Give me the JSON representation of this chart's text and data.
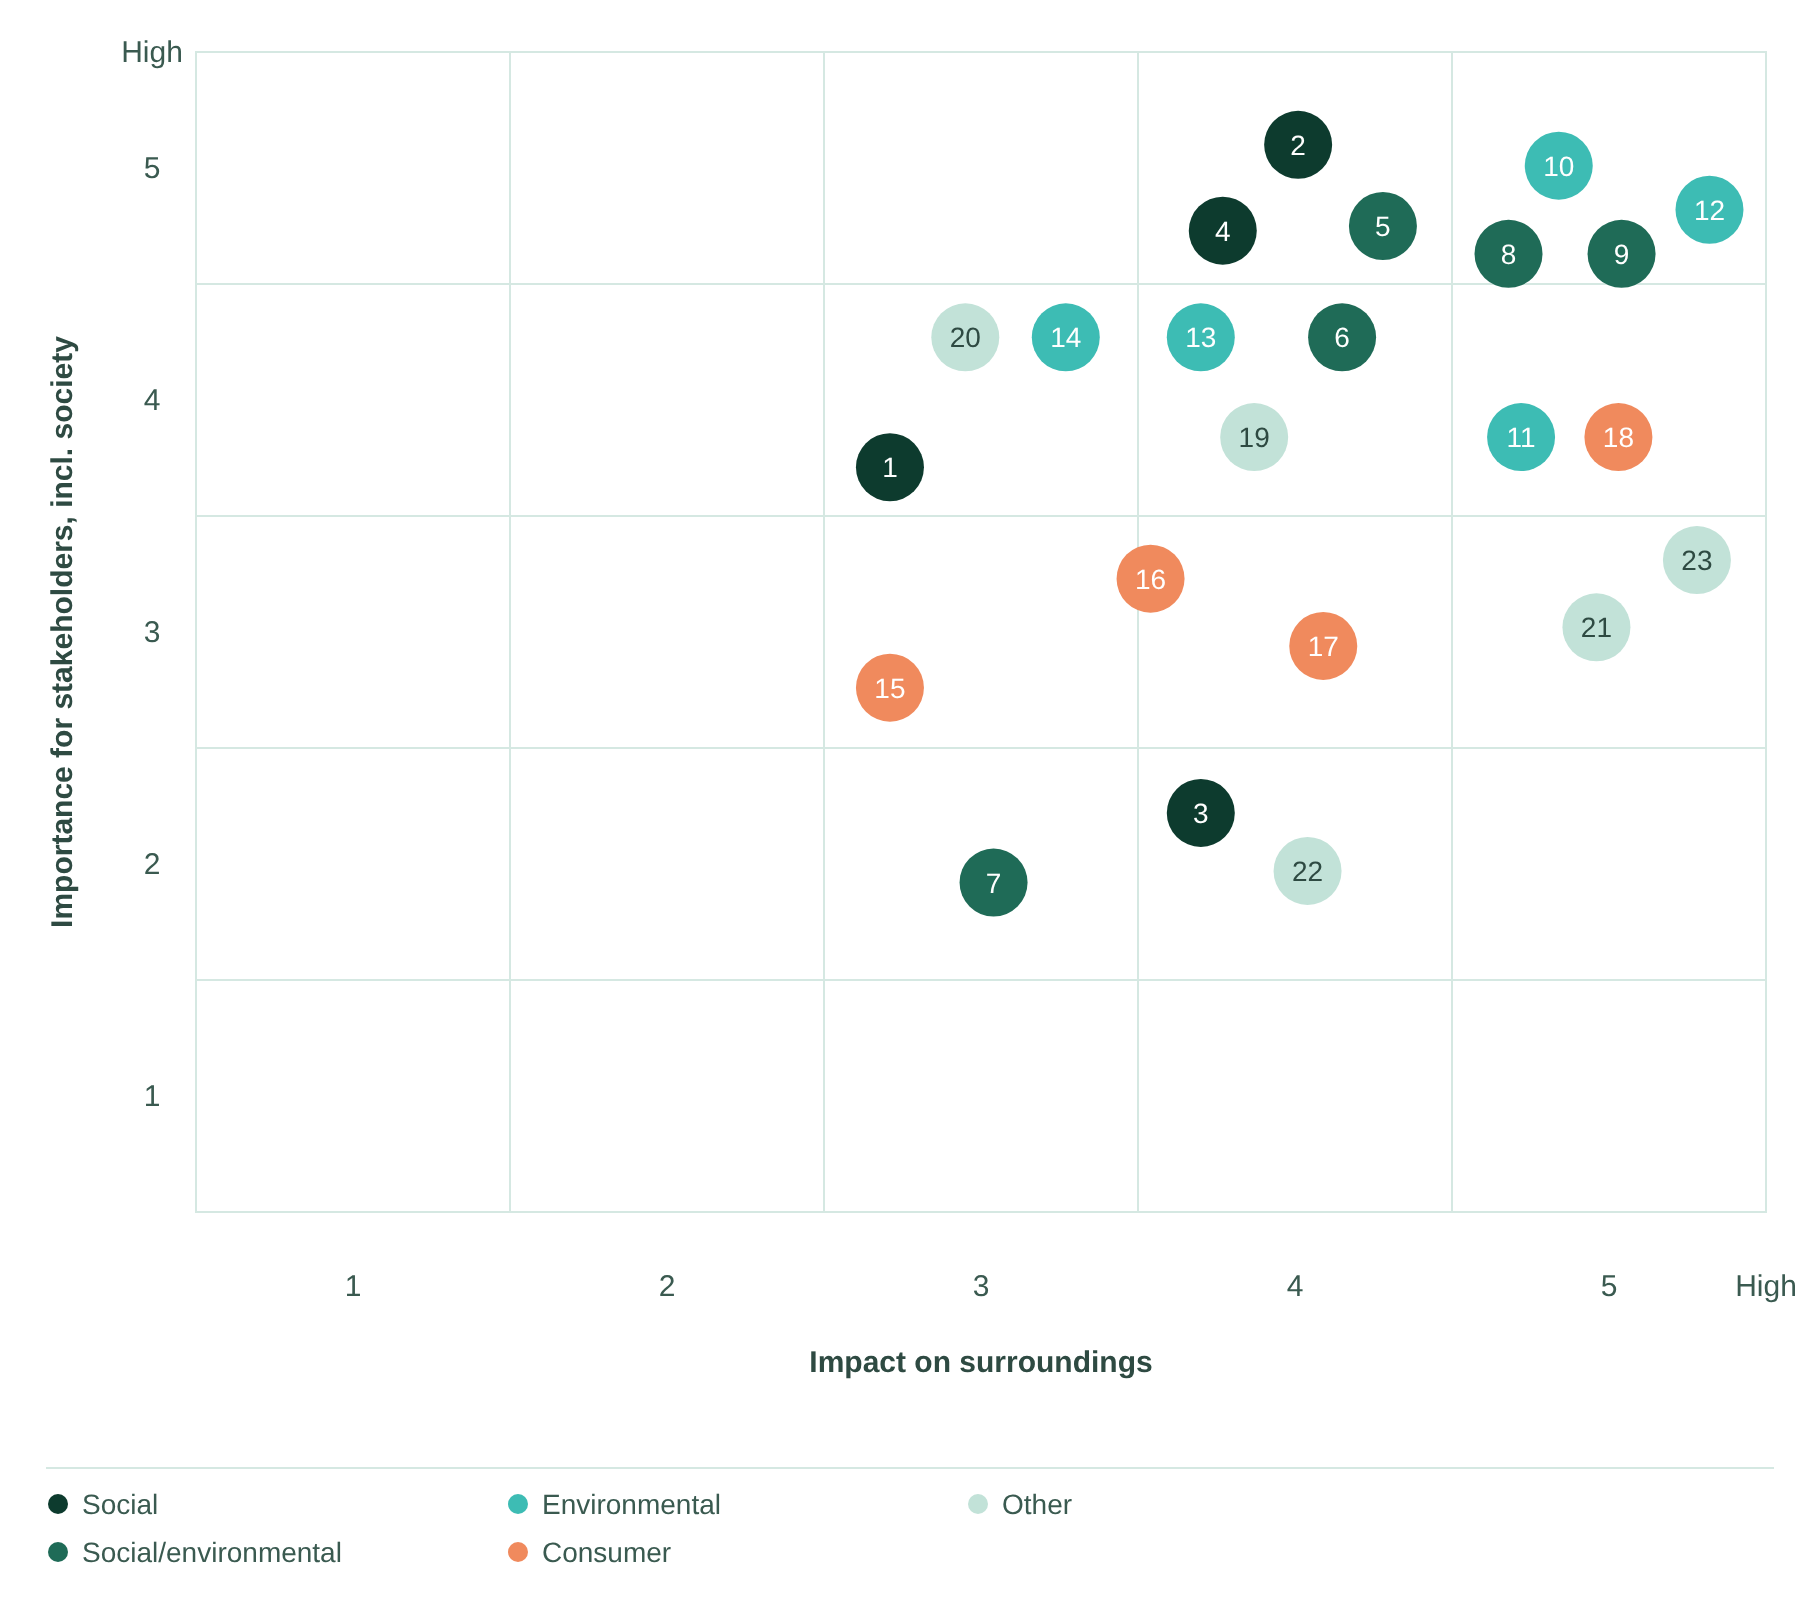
{
  "chart_data": {
    "type": "scatter",
    "xlabel": "Impact on surroundings",
    "ylabel": "Importance for stakeholders, incl. society",
    "xlim": [
      0.5,
      5.5
    ],
    "ylim": [
      0.5,
      5.5
    ],
    "xticks": [
      {
        "value": 1,
        "label": "1"
      },
      {
        "value": 1.5,
        "label": null
      },
      {
        "value": 2,
        "label": "2"
      },
      {
        "value": 2.5,
        "label": null
      },
      {
        "value": 3,
        "label": "3"
      },
      {
        "value": 3.5,
        "label": null
      },
      {
        "value": 4,
        "label": "4"
      },
      {
        "value": 4.5,
        "label": null
      },
      {
        "value": 5,
        "label": "5"
      },
      {
        "value": 5.5,
        "label": "High"
      }
    ],
    "yticks": [
      {
        "value": 1,
        "label": "1"
      },
      {
        "value": 1.5,
        "label": null
      },
      {
        "value": 2,
        "label": "2"
      },
      {
        "value": 2.5,
        "label": null
      },
      {
        "value": 3,
        "label": "3"
      },
      {
        "value": 3.5,
        "label": null
      },
      {
        "value": 4,
        "label": "4"
      },
      {
        "value": 4.5,
        "label": null
      },
      {
        "value": 5,
        "label": "5"
      },
      {
        "value": 5.5,
        "label": "High"
      }
    ],
    "grid": true,
    "legend": "bottom",
    "marker": "circle",
    "series": [
      {
        "name": "Social",
        "color": "#0d3b2e",
        "x": [
          2.71,
          4.01,
          3.7,
          3.77
        ],
        "values": [
          3.71,
          5.1,
          2.22,
          4.73
        ]
      },
      {
        "name": "Social/environmental",
        "color": "#1f6b57",
        "x": [
          4.28,
          4.15,
          3.04,
          4.68,
          5.04
        ],
        "values": [
          4.75,
          4.27,
          1.92,
          4.63,
          4.63
        ]
      },
      {
        "name": "Environmental",
        "color": "#3dbcb4",
        "x": [
          4.84,
          4.72,
          5.32,
          3.7,
          3.27
        ],
        "values": [
          5.01,
          3.84,
          4.82,
          4.27,
          4.27
        ]
      },
      {
        "name": "Consumer",
        "color": "#f08a5d",
        "x": [
          2.71,
          3.54,
          4.09,
          5.03
        ],
        "values": [
          2.76,
          3.23,
          2.94,
          3.84
        ]
      },
      {
        "name": "Other",
        "color": "#c2e2d8",
        "x": [
          3.87,
          2.95,
          4.96,
          4.04,
          5.28
        ],
        "values": [
          3.84,
          4.27,
          3.02,
          1.97,
          3.31
        ]
      }
    ],
    "annotations": [
      {
        "text": "1",
        "x": 2.71,
        "y": 3.71
      },
      {
        "text": "2",
        "x": 4.01,
        "y": 5.1
      },
      {
        "text": "3",
        "x": 3.7,
        "y": 2.22
      },
      {
        "text": "4",
        "x": 3.77,
        "y": 4.73
      },
      {
        "text": "5",
        "x": 4.28,
        "y": 4.75
      },
      {
        "text": "6",
        "x": 4.15,
        "y": 4.27
      },
      {
        "text": "7",
        "x": 3.04,
        "y": 1.92
      },
      {
        "text": "8",
        "x": 4.68,
        "y": 4.63
      },
      {
        "text": "9",
        "x": 5.04,
        "y": 4.63
      },
      {
        "text": "10",
        "x": 4.84,
        "y": 5.01
      },
      {
        "text": "11",
        "x": 4.72,
        "y": 3.84
      },
      {
        "text": "12",
        "x": 5.32,
        "y": 4.82
      },
      {
        "text": "13",
        "x": 3.7,
        "y": 4.27
      },
      {
        "text": "14",
        "x": 3.27,
        "y": 4.27
      },
      {
        "text": "15",
        "x": 2.71,
        "y": 2.76
      },
      {
        "text": "16",
        "x": 3.54,
        "y": 3.23
      },
      {
        "text": "17",
        "x": 4.09,
        "y": 2.94
      },
      {
        "text": "18",
        "x": 5.03,
        "y": 3.84
      },
      {
        "text": "19",
        "x": 3.87,
        "y": 3.84
      },
      {
        "text": "20",
        "x": 2.95,
        "y": 4.27
      },
      {
        "text": "21",
        "x": 4.96,
        "y": 3.02
      },
      {
        "text": "22",
        "x": 4.04,
        "y": 1.97
      },
      {
        "text": "23",
        "x": 5.28,
        "y": 3.31
      }
    ]
  }
}
